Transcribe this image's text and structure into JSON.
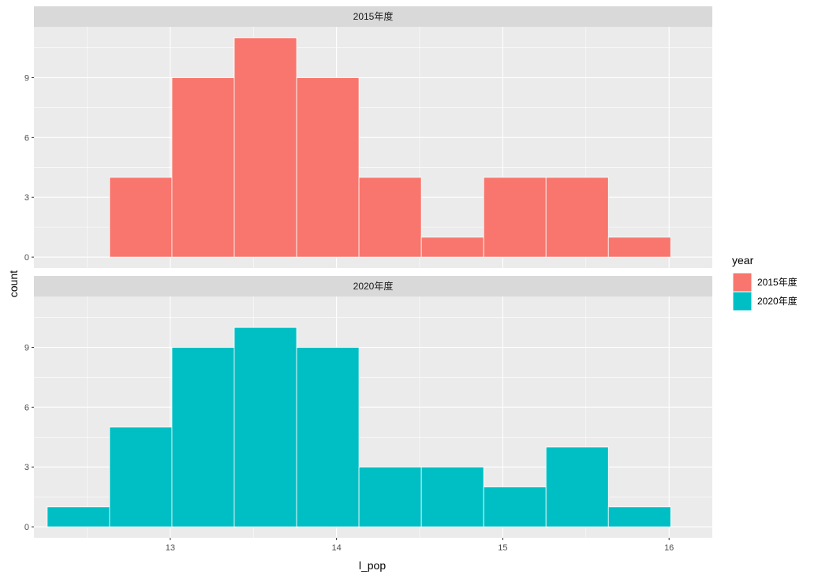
{
  "chart_data": {
    "type": "bar",
    "subtype": "histogram",
    "xlabel": "l_pop",
    "ylabel": "count",
    "x_ticks": [
      13,
      14,
      15,
      16
    ],
    "y_ticks": [
      0,
      3,
      6,
      9
    ],
    "xlim": [
      12.18,
      16.26
    ],
    "ylim": [
      -0.55,
      11.55
    ],
    "bin_edges": [
      12.26,
      12.635,
      13.01,
      13.385,
      13.76,
      14.135,
      14.51,
      14.885,
      15.26,
      15.635,
      16.01
    ],
    "grid": true,
    "legend": {
      "title": "year",
      "placement": "right",
      "entries": [
        {
          "label": "2015年度",
          "color": "#F8766D"
        },
        {
          "label": "2020年度",
          "color": "#00BFC4"
        }
      ]
    },
    "panels": [
      {
        "label": "2015年度",
        "color": "#F8766D",
        "counts": [
          0,
          4,
          9,
          11,
          9,
          4,
          1,
          4,
          4,
          1
        ]
      },
      {
        "label": "2020年度",
        "color": "#00BFC4",
        "counts": [
          1,
          5,
          9,
          10,
          9,
          3,
          3,
          2,
          4,
          1
        ]
      }
    ]
  }
}
